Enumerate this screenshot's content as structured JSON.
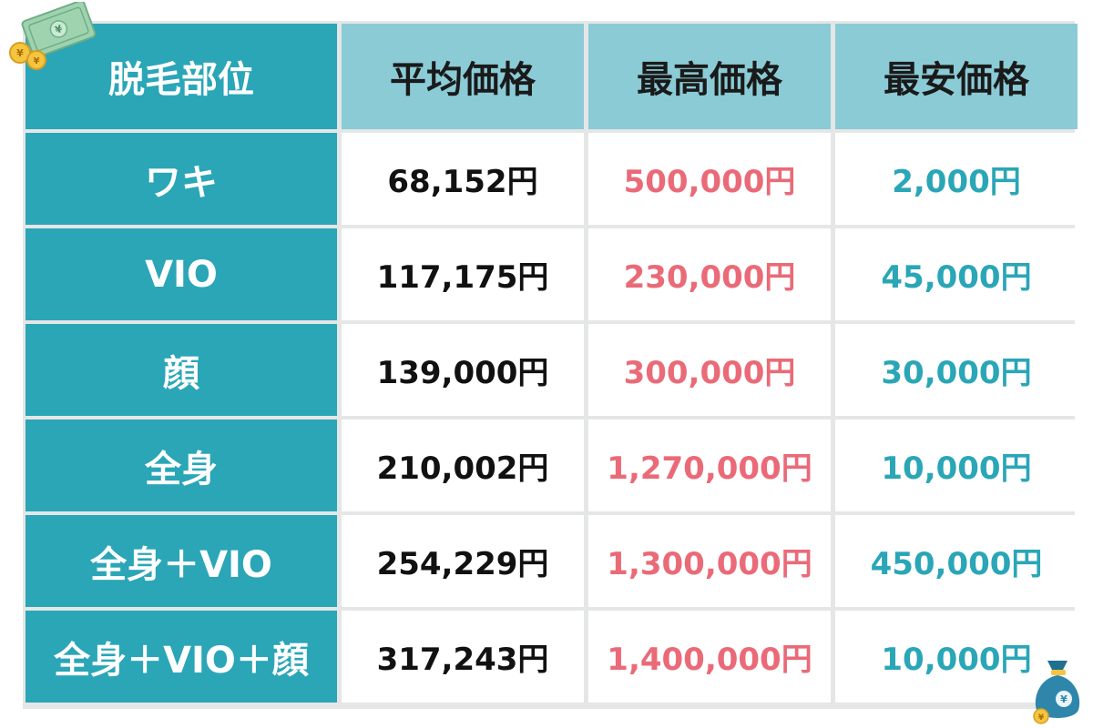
{
  "colors": {
    "header_dark": "#2aa6b7",
    "header_light": "#8acbd6",
    "avg_text": "#111111",
    "max_text": "#ea6a78",
    "min_text": "#2aa6b7"
  },
  "icons": {
    "top_left": "banknote-coins-icon",
    "bottom_right": "money-bag-icon"
  },
  "table": {
    "headers": [
      "脱毛部位",
      "平均価格",
      "最高価格",
      "最安価格"
    ],
    "rows": [
      {
        "part": "ワキ",
        "avg": "68,152円",
        "max": "500,000円",
        "min": "2,000円"
      },
      {
        "part": "VIO",
        "avg": "117,175円",
        "max": "230,000円",
        "min": "45,000円"
      },
      {
        "part": "顔",
        "avg": "139,000円",
        "max": "300,000円",
        "min": "30,000円"
      },
      {
        "part": "全身",
        "avg": "210,002円",
        "max": "1,270,000円",
        "min": "10,000円"
      },
      {
        "part": "全身＋VIO",
        "avg": "254,229円",
        "max": "1,300,000円",
        "min": "450,000円"
      },
      {
        "part": "全身＋VIO＋顔",
        "avg": "317,243円",
        "max": "1,400,000円",
        "min": "10,000円"
      }
    ]
  },
  "chart_data": {
    "type": "table",
    "columns": [
      "脱毛部位",
      "平均価格",
      "最高価格",
      "最安価格"
    ],
    "rows": [
      [
        "ワキ",
        "68,152円",
        "500,000円",
        "2,000円"
      ],
      [
        "VIO",
        "117,175円",
        "230,000円",
        "45,000円"
      ],
      [
        "顔",
        "139,000円",
        "300,000円",
        "30,000円"
      ],
      [
        "全身",
        "210,002円",
        "1,270,000円",
        "10,000円"
      ],
      [
        "全身＋VIO",
        "254,229円",
        "1,300,000円",
        "450,000円"
      ],
      [
        "全身＋VIO＋顔",
        "317,243円",
        "1,400,000円",
        "10,000円"
      ]
    ]
  }
}
